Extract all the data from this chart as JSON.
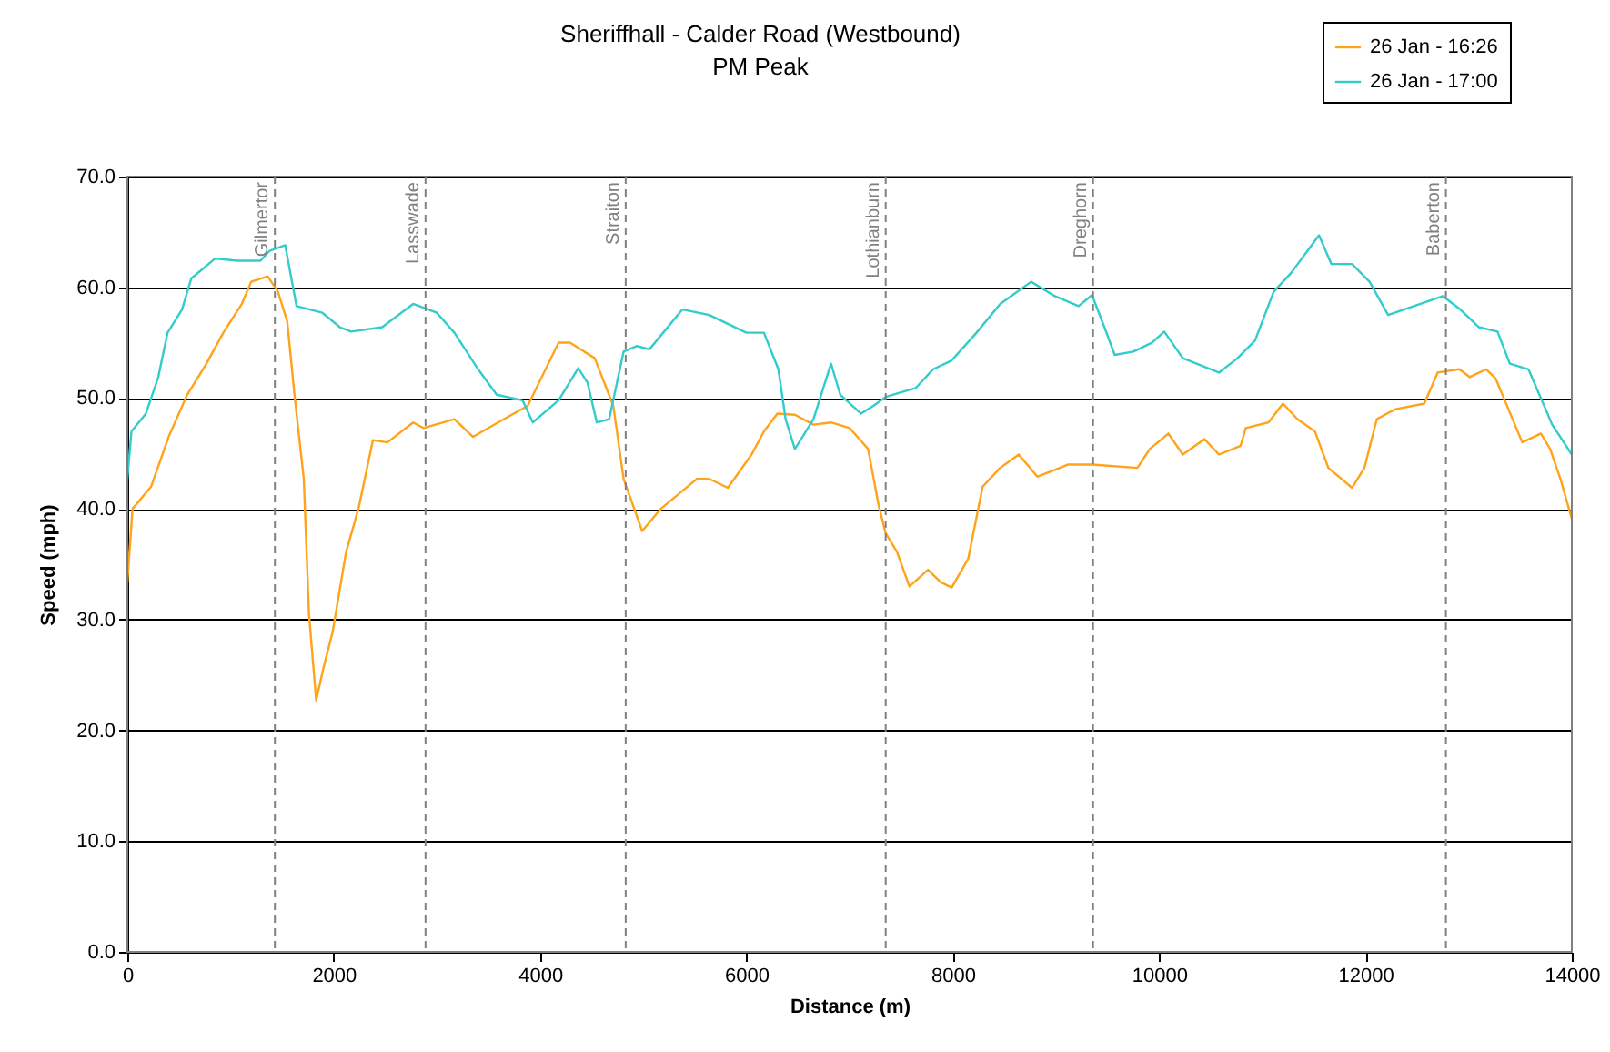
{
  "chart_data": {
    "type": "line",
    "title": "Sheriffhall - Calder Road (Westbound)",
    "subtitle": "PM Peak",
    "xlabel": "Distance (m)",
    "ylabel": "Speed (mph)",
    "xlim": [
      0,
      14000
    ],
    "xticks": [
      0,
      2000,
      4000,
      6000,
      8000,
      10000,
      12000,
      14000
    ],
    "ylim": [
      0,
      70
    ],
    "yticks": [
      {
        "value": 0,
        "label": "0.0"
      },
      {
        "value": 10,
        "label": "10.0"
      },
      {
        "value": 20,
        "label": "20.0"
      },
      {
        "value": 30,
        "label": "30.0"
      },
      {
        "value": 40,
        "label": "40.0"
      },
      {
        "value": 50,
        "label": "50.0"
      },
      {
        "value": 60,
        "label": "60.0"
      },
      {
        "value": 70,
        "label": "70.0"
      }
    ],
    "grid": "y",
    "legend": "top right",
    "series": [
      {
        "name": "26 Jan - 16:26",
        "color": "#ffa31a",
        "x": [
          0,
          50,
          230,
          400,
          580,
          760,
          930,
          1110,
          1200,
          1360,
          1460,
          1550,
          1620,
          1710,
          1760,
          1830,
          1900,
          1990,
          2120,
          2240,
          2380,
          2520,
          2770,
          2870,
          3170,
          3350,
          3650,
          3880,
          4180,
          4290,
          4530,
          4710,
          4810,
          4990,
          5170,
          5520,
          5640,
          5820,
          6050,
          6170,
          6300,
          6470,
          6650,
          6820,
          7000,
          7180,
          7280,
          7350,
          7460,
          7580,
          7760,
          7880,
          7990,
          8150,
          8290,
          8460,
          8640,
          8820,
          9120,
          9350,
          9790,
          9910,
          10090,
          10230,
          10440,
          10580,
          10790,
          10840,
          11060,
          11200,
          11340,
          11510,
          11640,
          11870,
          11990,
          12110,
          12290,
          12570,
          12700,
          12910,
          13010,
          13170,
          13260,
          13350,
          13520,
          13700,
          13790,
          13890,
          14000
        ],
        "values": [
          33.3,
          40,
          42,
          46.5,
          50.3,
          53,
          55.9,
          58.5,
          60.5,
          61,
          59.6,
          56.9,
          50.3,
          42.7,
          30.6,
          22.7,
          25.6,
          28.9,
          36.1,
          40,
          46.2,
          46,
          47.8,
          47.3,
          48.1,
          46.5,
          48.1,
          49.3,
          55,
          55,
          53.6,
          49.3,
          42.7,
          38,
          40,
          42.7,
          42.7,
          41.9,
          44.9,
          47,
          48.6,
          48.5,
          47.6,
          47.8,
          47.3,
          45.4,
          40.4,
          37.8,
          36.1,
          33,
          34.5,
          33.4,
          32.9,
          35.5,
          42,
          43.7,
          44.9,
          42.9,
          44,
          44,
          43.7,
          45.4,
          46.8,
          44.9,
          46.3,
          44.9,
          45.7,
          47.3,
          47.8,
          49.5,
          48.1,
          47,
          43.7,
          41.9,
          43.7,
          48.1,
          49,
          49.5,
          52.3,
          52.6,
          51.9,
          52.6,
          51.8,
          49.8,
          46,
          46.8,
          45.4,
          42.7,
          39.1
        ]
      },
      {
        "name": "26 Jan - 17:00",
        "color": "#33cccc",
        "x": [
          0,
          40,
          180,
          300,
          390,
          530,
          620,
          850,
          1060,
          1290,
          1380,
          1530,
          1640,
          1890,
          2060,
          2170,
          2470,
          2770,
          3000,
          3170,
          3400,
          3580,
          3830,
          3930,
          4180,
          4370,
          4460,
          4550,
          4670,
          4810,
          4940,
          5060,
          5380,
          5640,
          6000,
          6170,
          6310,
          6380,
          6470,
          6650,
          6820,
          6910,
          7110,
          7230,
          7350,
          7640,
          7810,
          7990,
          8230,
          8460,
          8760,
          8990,
          9220,
          9350,
          9470,
          9570,
          9750,
          9930,
          10050,
          10230,
          10580,
          10760,
          10930,
          11110,
          11280,
          11550,
          11670,
          11870,
          12040,
          12220,
          12470,
          12750,
          12920,
          13100,
          13280,
          13400,
          13580,
          13810,
          14000
        ],
        "values": [
          42.7,
          47,
          48.6,
          51.9,
          55.9,
          58,
          60.8,
          62.6,
          62.4,
          62.4,
          63.3,
          63.8,
          58.3,
          57.7,
          56.4,
          56,
          56.4,
          58.5,
          57.7,
          55.9,
          52.6,
          50.3,
          49.8,
          47.8,
          49.8,
          52.7,
          51.4,
          47.8,
          48.1,
          54.2,
          54.7,
          54.4,
          58,
          57.5,
          55.9,
          55.9,
          52.6,
          48.1,
          45.4,
          48.1,
          53.1,
          50.3,
          48.6,
          49.3,
          50.1,
          50.9,
          52.6,
          53.4,
          55.9,
          58.5,
          60.5,
          59.2,
          58.3,
          59.3,
          56.4,
          53.9,
          54.2,
          55,
          56,
          53.6,
          52.3,
          53.6,
          55.2,
          59.6,
          61.3,
          64.7,
          62.1,
          62.1,
          60.5,
          57.5,
          58.3,
          59.2,
          58,
          56.4,
          56,
          53.1,
          52.6,
          47.6,
          44.9
        ]
      }
    ],
    "ref_lines": [
      {
        "axis": "x",
        "value": 1430,
        "label": "Gilmertor",
        "color": "#808080",
        "line_style": "dashed"
      },
      {
        "axis": "x",
        "value": 2890,
        "label": "Lasswade",
        "color": "#808080",
        "line_style": "dashed"
      },
      {
        "axis": "x",
        "value": 4830,
        "label": "Straiton",
        "color": "#808080",
        "line_style": "dashed"
      },
      {
        "axis": "x",
        "value": 7350,
        "label": "Lothianburn",
        "color": "#808080",
        "line_style": "dashed"
      },
      {
        "axis": "x",
        "value": 9360,
        "label": "Dreghorn",
        "color": "#808080",
        "line_style": "dashed"
      },
      {
        "axis": "x",
        "value": 12780,
        "label": "Baberton",
        "color": "#808080",
        "line_style": "dashed"
      }
    ]
  }
}
